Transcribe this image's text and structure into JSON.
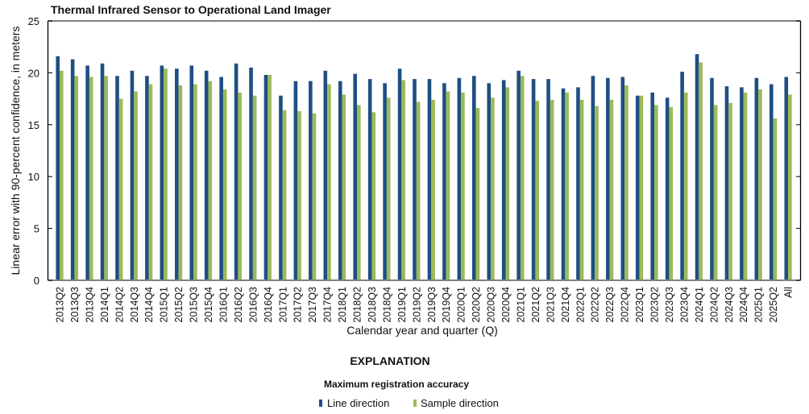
{
  "chart_data": {
    "type": "bar",
    "title": "Thermal Infrared Sensor to Operational Land Imager",
    "xlabel": "Calendar year and quarter (Q)",
    "ylabel": "Linear error with 90-percent confidence, in meters",
    "ylim": [
      0,
      25
    ],
    "yticks": [
      0,
      5,
      10,
      15,
      20,
      25
    ],
    "grid": false,
    "legend_position": "bottom",
    "legend_title": "EXPLANATION",
    "legend_subtitle": "Maximum registration accuracy",
    "categories": [
      "2013Q2",
      "2013Q3",
      "2013Q4",
      "2014Q1",
      "2014Q2",
      "2014Q3",
      "2014Q4",
      "2015Q1",
      "2015Q2",
      "2015Q3",
      "2015Q4",
      "2016Q1",
      "2016Q2",
      "2016Q3",
      "2016Q4",
      "2017Q1",
      "2017Q2",
      "2017Q3",
      "2017Q4",
      "2018Q1",
      "2018Q2",
      "2018Q3",
      "2018Q4",
      "2019Q1",
      "2019Q2",
      "2019Q3",
      "2019Q4",
      "2020Q1",
      "2020Q2",
      "2020Q3",
      "2020Q4",
      "2021Q1",
      "2021Q2",
      "2021Q3",
      "2021Q4",
      "2022Q1",
      "2022Q2",
      "2022Q3",
      "2022Q4",
      "2023Q1",
      "2023Q2",
      "2023Q3",
      "2023Q4",
      "2024Q1",
      "2024Q2",
      "2024Q3",
      "2024Q4",
      "2025Q1",
      "2025Q2",
      "All"
    ],
    "series": [
      {
        "name": "Line direction",
        "color": "#1f4e82",
        "values": [
          21.6,
          21.3,
          20.7,
          20.9,
          19.7,
          20.2,
          19.7,
          20.7,
          20.4,
          20.7,
          20.2,
          19.6,
          20.9,
          20.5,
          19.8,
          17.8,
          19.2,
          19.2,
          20.2,
          19.2,
          19.9,
          19.4,
          19.0,
          20.4,
          19.4,
          19.4,
          19.0,
          19.5,
          19.7,
          19.0,
          19.3,
          20.2,
          19.4,
          19.4,
          18.5,
          18.6,
          19.7,
          19.5,
          19.6,
          17.8,
          18.1,
          17.6,
          20.1,
          21.8,
          19.5,
          18.7,
          18.6,
          19.5,
          18.9,
          19.6
        ]
      },
      {
        "name": "Sample direction",
        "color": "#9bbb59",
        "values": [
          20.2,
          19.7,
          19.6,
          19.7,
          17.5,
          18.2,
          18.9,
          20.4,
          18.8,
          18.9,
          19.2,
          18.4,
          18.1,
          17.8,
          19.8,
          16.4,
          16.3,
          16.1,
          18.9,
          17.9,
          16.9,
          16.2,
          17.6,
          19.3,
          17.2,
          17.4,
          18.2,
          18.1,
          16.6,
          17.6,
          18.6,
          19.7,
          17.3,
          17.4,
          18.1,
          17.4,
          16.8,
          17.4,
          18.8,
          17.8,
          16.9,
          16.7,
          18.1,
          21.0,
          16.9,
          17.1,
          18.1,
          18.4,
          15.6,
          17.9
        ]
      }
    ]
  }
}
